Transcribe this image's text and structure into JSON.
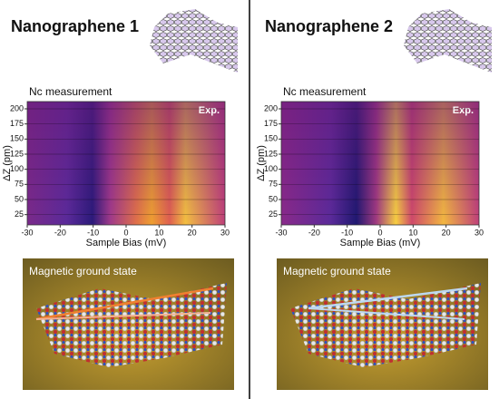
{
  "panels": [
    {
      "title": "Nanographene 1",
      "plot": {
        "title": "Nc measurement",
        "label": "Exp.",
        "xlabel": "Sample Bias (mV)",
        "ylabel": "ΔZ (pm)",
        "xlim": [
          -30,
          30
        ],
        "ylim": [
          8,
          212
        ],
        "xticks": [
          -30,
          -20,
          -10,
          0,
          10,
          20,
          30
        ],
        "yticks": [
          25,
          50,
          75,
          100,
          125,
          150,
          175,
          200
        ]
      },
      "image_caption": "Magnetic ground state"
    },
    {
      "title": "Nanographene 2",
      "plot": {
        "title": "Nc measurement",
        "label": "Exp.",
        "xlabel": "Sample Bias (mV)",
        "ylabel": "ΔZ (pm)",
        "xlim": [
          -30,
          30
        ],
        "ylim": [
          8,
          212
        ],
        "xticks": [
          -30,
          -20,
          -10,
          0,
          10,
          20,
          30
        ],
        "yticks": [
          25,
          50,
          75,
          100,
          125,
          150,
          175,
          200
        ]
      },
      "image_caption": "Magnetic ground state"
    }
  ]
}
